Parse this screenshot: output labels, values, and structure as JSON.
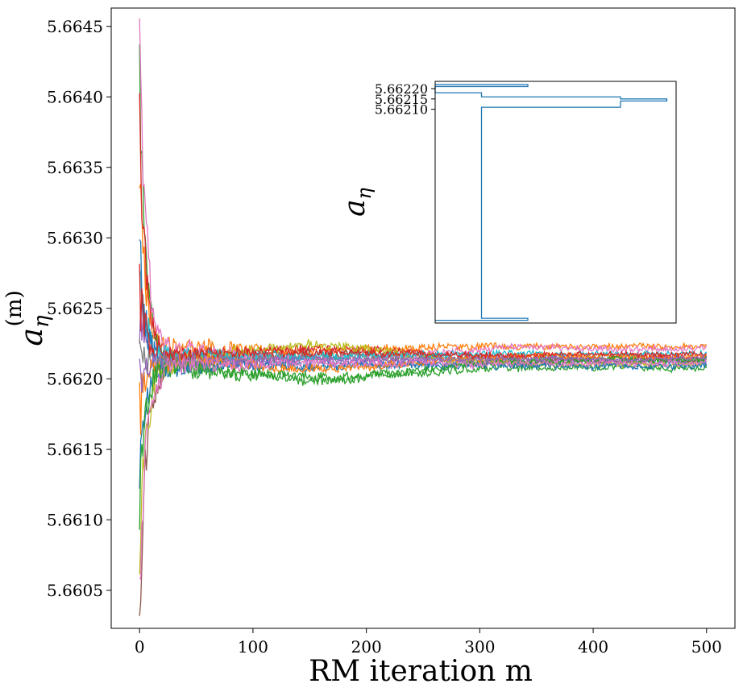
{
  "chart_data": [
    {
      "type": "line",
      "xlabel": "RM iteration m",
      "ylabel_main": "a",
      "ylabel_sub": "η",
      "ylabel_sup": "(m)",
      "xlim": [
        -25,
        525
      ],
      "ylim": [
        5.66023,
        5.66463
      ],
      "xticks": [
        0,
        100,
        200,
        300,
        400,
        500
      ],
      "xtick_labels": [
        "0",
        "100",
        "200",
        "300",
        "400",
        "500"
      ],
      "yticks": [
        5.6605,
        5.661,
        5.6615,
        5.662,
        5.6625,
        5.663,
        5.6635,
        5.664,
        5.6645
      ],
      "ytick_labels": [
        "5.6605",
        "5.6610",
        "5.6615",
        "5.6620",
        "5.6625",
        "5.6630",
        "5.6635",
        "5.6640",
        "5.6645"
      ],
      "grid": false,
      "n_iterations": 500,
      "series": [
        {
          "color": "#1f77b4",
          "start": 5.6614,
          "end": 5.66212,
          "amp": 0.00055,
          "mid": 5.66208,
          "seed": 11
        },
        {
          "color": "#ff7f0e",
          "start": 5.66348,
          "end": 5.66223,
          "amp": 0.0006,
          "mid": 5.6622,
          "seed": 23
        },
        {
          "color": "#2ca02c",
          "start": 5.6643,
          "end": 5.66208,
          "amp": 0.0007,
          "mid": 5.662,
          "seed": 37
        },
        {
          "color": "#d62728",
          "start": 5.66375,
          "end": 5.66215,
          "amp": 0.0005,
          "mid": 5.66222,
          "seed": 41
        },
        {
          "color": "#9467bd",
          "start": 5.6625,
          "end": 5.66212,
          "amp": 0.00045,
          "mid": 5.66214,
          "seed": 53
        },
        {
          "color": "#8c564b",
          "start": 5.66045,
          "end": 5.66213,
          "amp": 0.0006,
          "mid": 5.66218,
          "seed": 67
        },
        {
          "color": "#e377c2",
          "start": 5.66442,
          "end": 5.66222,
          "amp": 0.00065,
          "mid": 5.66212,
          "seed": 71
        },
        {
          "color": "#7f7f7f",
          "start": 5.66215,
          "end": 5.66214,
          "amp": 0.0004,
          "mid": 5.66215,
          "seed": 83
        },
        {
          "color": "#bcbd22",
          "start": 5.66095,
          "end": 5.6621,
          "amp": 0.0006,
          "mid": 5.66224,
          "seed": 97
        },
        {
          "color": "#17becf",
          "start": 5.6628,
          "end": 5.66218,
          "amp": 0.0005,
          "mid": 5.66216,
          "seed": 101
        },
        {
          "color": "#1f77b4",
          "start": 5.663,
          "end": 5.66209,
          "amp": 0.0006,
          "mid": 5.6621,
          "seed": 113
        },
        {
          "color": "#ff7f0e",
          "start": 5.6618,
          "end": 5.66216,
          "amp": 0.00055,
          "mid": 5.66206,
          "seed": 127
        },
        {
          "color": "#2ca02c",
          "start": 5.6612,
          "end": 5.66213,
          "amp": 0.0006,
          "mid": 5.66198,
          "seed": 131
        },
        {
          "color": "#d62728",
          "start": 5.6626,
          "end": 5.66217,
          "amp": 0.0005,
          "mid": 5.66219,
          "seed": 139
        },
        {
          "color": "#9467bd",
          "start": 5.662,
          "end": 5.66214,
          "amp": 0.00045,
          "mid": 5.66213,
          "seed": 149
        },
        {
          "color": "#e377c2",
          "start": 5.6606,
          "end": 5.66211,
          "amp": 0.00055,
          "mid": 5.66211,
          "seed": 157
        }
      ]
    },
    {
      "type": "histogram",
      "orientation": "horizontal",
      "ylabel_main": "a",
      "ylabel_sub": "η",
      "ylim": [
        5.661067,
        5.662235
      ],
      "xlim": [
        0,
        5.2
      ],
      "yticks": [
        5.6621,
        5.66215,
        5.6622
      ],
      "ytick_labels": [
        "5.66210",
        "5.66215",
        "5.66220"
      ],
      "bins": [
        {
          "low": 5.66108,
          "high": 5.66109,
          "count": 2
        },
        {
          "low": 5.66109,
          "high": 5.66211,
          "count": 1
        },
        {
          "low": 5.66211,
          "high": 5.66214,
          "count": 4
        },
        {
          "low": 5.66214,
          "high": 5.66215,
          "count": 5
        },
        {
          "low": 5.66215,
          "high": 5.66216,
          "count": 4
        },
        {
          "low": 5.66216,
          "high": 5.66218,
          "count": 1
        },
        {
          "low": 5.66218,
          "high": 5.66221,
          "count": 0
        },
        {
          "low": 5.66221,
          "high": 5.66222,
          "count": 2
        }
      ]
    }
  ]
}
